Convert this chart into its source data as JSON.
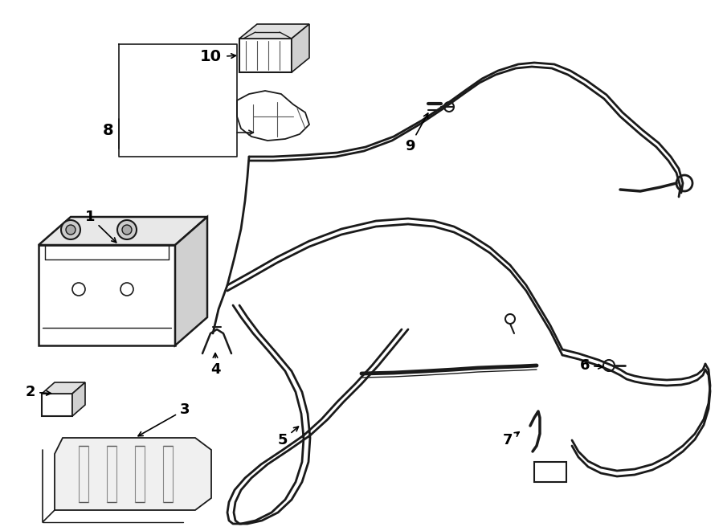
{
  "background_color": "#ffffff",
  "line_color": "#1a1a1a",
  "figsize": [
    9.0,
    6.61
  ],
  "dpi": 100
}
